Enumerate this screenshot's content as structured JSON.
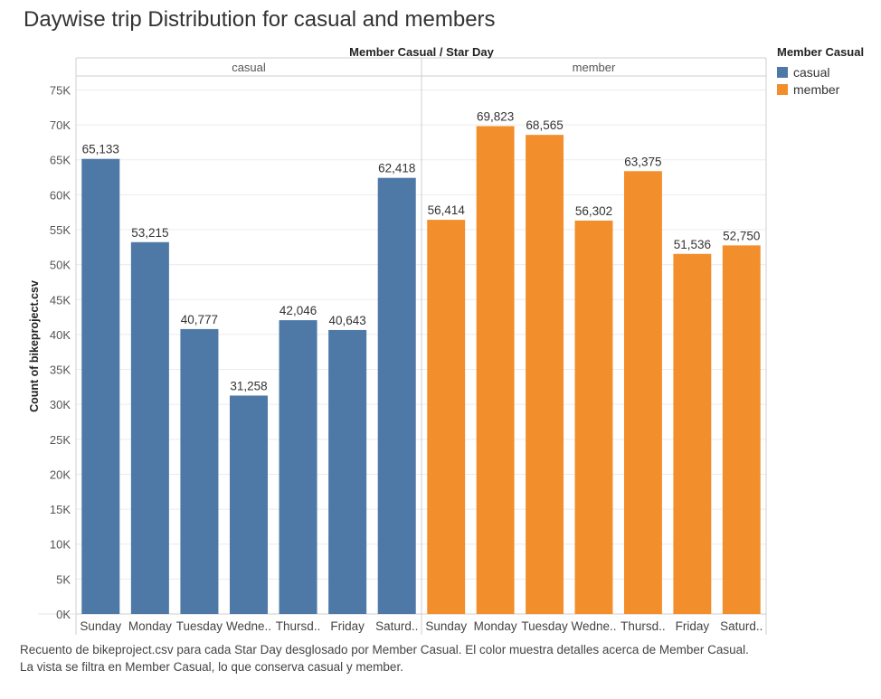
{
  "title": "Daywise trip Distribution for casual and members",
  "footnote": "Recuento de bikeproject.csv para cada Star Day desglosado por Member Casual.  El color muestra detalles acerca de Member Casual. La vista se filtra en Member Casual, lo que conserva casual y member.",
  "legend": {
    "title": "Member Casual",
    "items": [
      {
        "label": "casual",
        "color": "#4e79a7"
      },
      {
        "label": "member",
        "color": "#f28e2b"
      }
    ]
  },
  "chart_data": {
    "type": "bar",
    "column_header": "Member Casual / Star Day",
    "ylabel": "Count of bikeproject.csv",
    "ylim": [
      0,
      77000
    ],
    "yticks": [
      {
        "value": 0,
        "label": "0K"
      },
      {
        "value": 5000,
        "label": "5K"
      },
      {
        "value": 10000,
        "label": "10K"
      },
      {
        "value": 15000,
        "label": "15K"
      },
      {
        "value": 20000,
        "label": "20K"
      },
      {
        "value": 25000,
        "label": "25K"
      },
      {
        "value": 30000,
        "label": "30K"
      },
      {
        "value": 35000,
        "label": "35K"
      },
      {
        "value": 40000,
        "label": "40K"
      },
      {
        "value": 45000,
        "label": "45K"
      },
      {
        "value": 50000,
        "label": "50K"
      },
      {
        "value": 55000,
        "label": "55K"
      },
      {
        "value": 60000,
        "label": "60K"
      },
      {
        "value": 65000,
        "label": "65K"
      },
      {
        "value": 70000,
        "label": "70K"
      },
      {
        "value": 75000,
        "label": "75K"
      }
    ],
    "grid": true,
    "legend_position": "right",
    "panels": [
      {
        "name": "casual",
        "color": "#4e79a7",
        "categories": [
          "Sunday",
          "Monday",
          "Tuesday",
          "Wedne..",
          "Thursd..",
          "Friday",
          "Saturd.."
        ],
        "values": [
          65133,
          53215,
          40777,
          31258,
          42046,
          40643,
          62418
        ],
        "labels": [
          "65,133",
          "53,215",
          "40,777",
          "31,258",
          "42,046",
          "40,643",
          "62,418"
        ]
      },
      {
        "name": "member",
        "color": "#f28e2b",
        "categories": [
          "Sunday",
          "Monday",
          "Tuesday",
          "Wedne..",
          "Thursd..",
          "Friday",
          "Saturd.."
        ],
        "values": [
          56414,
          69823,
          68565,
          56302,
          63375,
          51536,
          52750
        ],
        "labels": [
          "56,414",
          "69,823",
          "68,565",
          "56,302",
          "63,375",
          "51,536",
          "52,750"
        ]
      }
    ]
  }
}
